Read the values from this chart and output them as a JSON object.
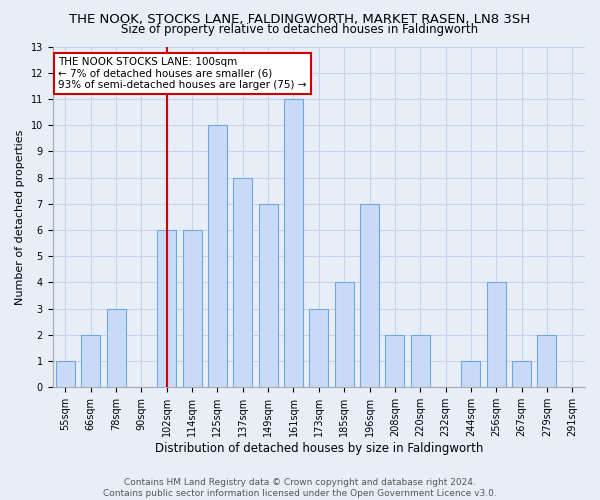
{
  "title": "THE NOOK, STOCKS LANE, FALDINGWORTH, MARKET RASEN, LN8 3SH",
  "subtitle": "Size of property relative to detached houses in Faldingworth",
  "xlabel": "Distribution of detached houses by size in Faldingworth",
  "ylabel": "Number of detached properties",
  "categories": [
    "55sqm",
    "66sqm",
    "78sqm",
    "90sqm",
    "102sqm",
    "114sqm",
    "125sqm",
    "137sqm",
    "149sqm",
    "161sqm",
    "173sqm",
    "185sqm",
    "196sqm",
    "208sqm",
    "220sqm",
    "232sqm",
    "244sqm",
    "256sqm",
    "267sqm",
    "279sqm",
    "291sqm"
  ],
  "values": [
    1,
    2,
    3,
    0,
    6,
    6,
    10,
    8,
    7,
    11,
    3,
    4,
    7,
    2,
    2,
    0,
    1,
    4,
    1,
    2,
    0
  ],
  "bar_color": "#c9daf8",
  "bar_edgecolor": "#6fa8dc",
  "reference_line_x": "102sqm",
  "reference_line_color": "#cc0000",
  "ylim": [
    0,
    13
  ],
  "yticks": [
    0,
    1,
    2,
    3,
    4,
    5,
    6,
    7,
    8,
    9,
    10,
    11,
    12,
    13
  ],
  "annotation_title": "THE NOOK STOCKS LANE: 100sqm",
  "annotation_line1": "← 7% of detached houses are smaller (6)",
  "annotation_line2": "93% of semi-detached houses are larger (75) →",
  "annotation_box_color": "#ffffff",
  "annotation_box_edgecolor": "#cc0000",
  "grid_color": "#c8d4e8",
  "background_color": "#e8eef8",
  "footer1": "Contains HM Land Registry data © Crown copyright and database right 2024.",
  "footer2": "Contains public sector information licensed under the Open Government Licence v3.0.",
  "title_fontsize": 9.5,
  "subtitle_fontsize": 8.5,
  "xlabel_fontsize": 8.5,
  "ylabel_fontsize": 8,
  "tick_fontsize": 7,
  "annotation_fontsize": 7.5,
  "footer_fontsize": 6.5
}
